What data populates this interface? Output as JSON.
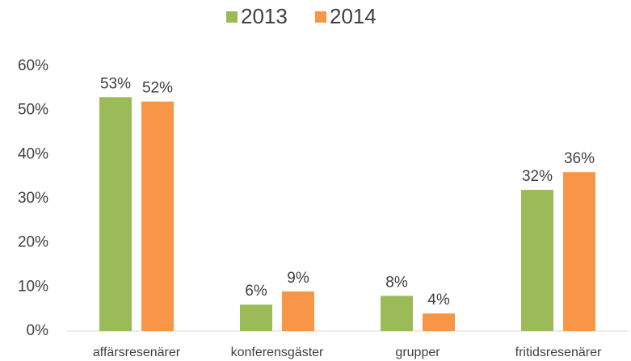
{
  "chart_data": {
    "type": "bar",
    "categories": [
      "affärsresenärer",
      "konferensgäster",
      "grupper",
      "fritidsresenärer"
    ],
    "series": [
      {
        "name": "2013",
        "color": "#9bbb59",
        "values": [
          53,
          6,
          8,
          32
        ],
        "value_labels": [
          "53%",
          "6%",
          "8%",
          "32%"
        ]
      },
      {
        "name": "2014",
        "color": "#f79646",
        "values": [
          52,
          9,
          4,
          36
        ],
        "value_labels": [
          "52%",
          "9%",
          "4%",
          "36%"
        ]
      }
    ],
    "ylim": [
      0,
      60
    ],
    "yticks": [
      {
        "value": 0,
        "label": "0%"
      },
      {
        "value": 10,
        "label": "10%"
      },
      {
        "value": 20,
        "label": "20%"
      },
      {
        "value": 30,
        "label": "30%"
      },
      {
        "value": 40,
        "label": "40%"
      },
      {
        "value": 50,
        "label": "50%"
      },
      {
        "value": 60,
        "label": "60%"
      }
    ],
    "grid": false,
    "legend": "top"
  }
}
